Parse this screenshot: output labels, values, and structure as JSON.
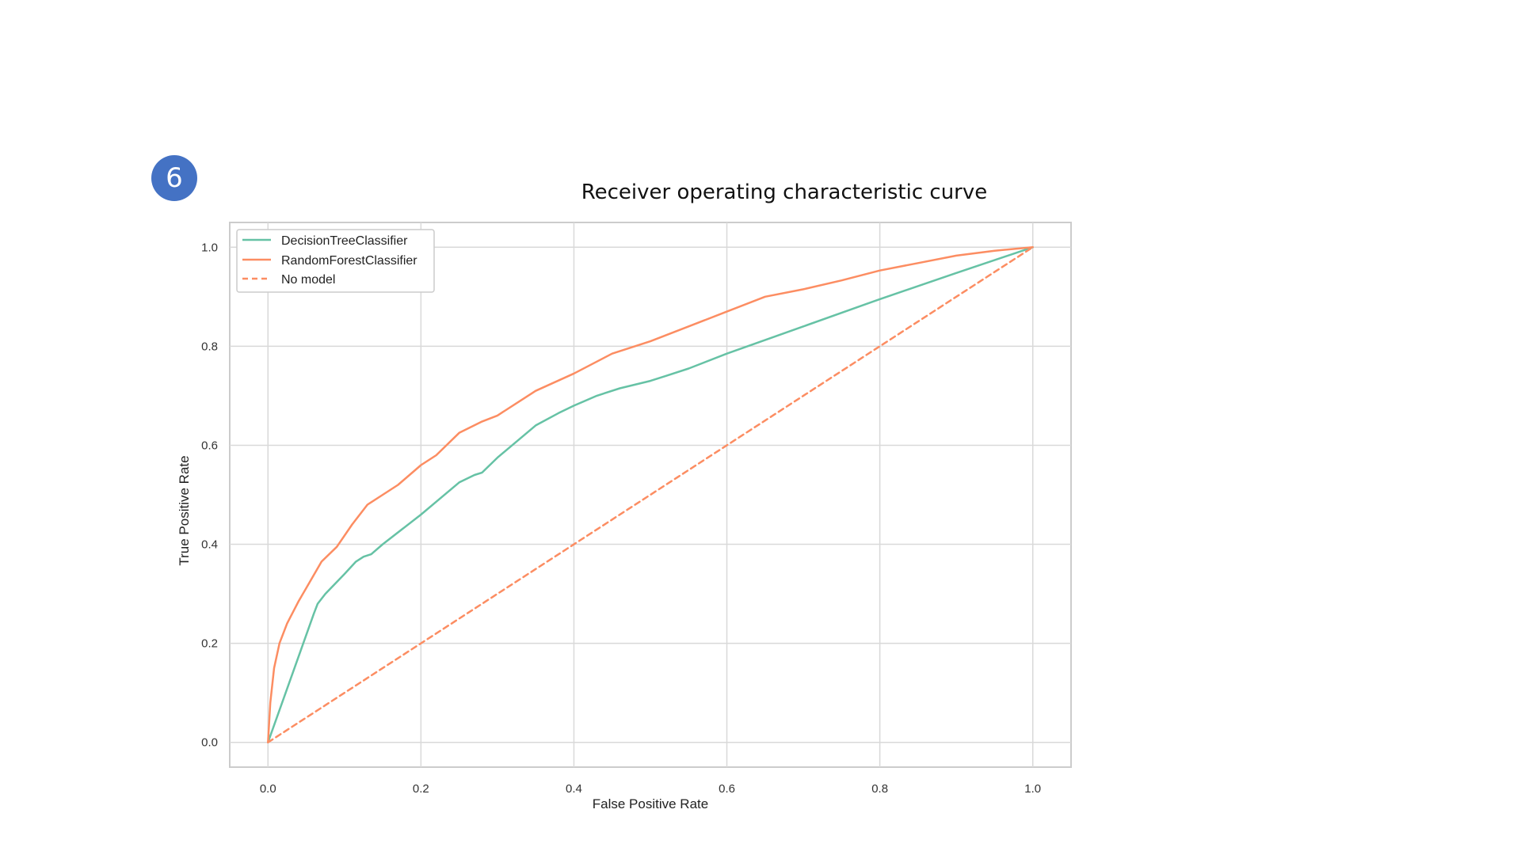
{
  "slide": {
    "badge": "6"
  },
  "chart_data": {
    "type": "line",
    "title": "Receiver operating characteristic curve",
    "xlabel": "False Positive Rate",
    "ylabel": "True Positive Rate",
    "xlim": [
      -0.05,
      1.05
    ],
    "ylim": [
      -0.05,
      1.05
    ],
    "xticks": [
      0.0,
      0.2,
      0.4,
      0.6,
      0.8,
      1.0
    ],
    "xtick_labels": [
      "0.0",
      "0.2",
      "0.4",
      "0.6",
      "0.8",
      "1.0"
    ],
    "yticks": [
      0.0,
      0.2,
      0.4,
      0.6,
      0.8,
      1.0
    ],
    "ytick_labels": [
      "0.0",
      "0.2",
      "0.4",
      "0.6",
      "0.8",
      "1.0"
    ],
    "grid": true,
    "legend_position": "upper-left",
    "series": [
      {
        "name": "DecisionTreeClassifier",
        "color": "#66c2a5",
        "dash": false,
        "x": [
          0.0,
          0.06,
          0.065,
          0.075,
          0.1,
          0.115,
          0.125,
          0.135,
          0.15,
          0.2,
          0.25,
          0.27,
          0.28,
          0.3,
          0.35,
          0.38,
          0.4,
          0.43,
          0.46,
          0.5,
          0.52,
          0.55,
          0.6,
          0.7,
          0.8,
          0.9,
          1.0
        ],
        "y": [
          0.0,
          0.26,
          0.28,
          0.3,
          0.34,
          0.365,
          0.375,
          0.38,
          0.4,
          0.46,
          0.525,
          0.54,
          0.545,
          0.575,
          0.64,
          0.665,
          0.68,
          0.7,
          0.715,
          0.73,
          0.74,
          0.755,
          0.785,
          0.84,
          0.895,
          0.948,
          1.0
        ]
      },
      {
        "name": "RandomForestClassifier",
        "color": "#fc8d62",
        "dash": false,
        "x": [
          0.0,
          0.003,
          0.008,
          0.015,
          0.025,
          0.04,
          0.055,
          0.07,
          0.09,
          0.11,
          0.13,
          0.15,
          0.17,
          0.2,
          0.22,
          0.25,
          0.28,
          0.3,
          0.35,
          0.4,
          0.45,
          0.5,
          0.55,
          0.6,
          0.65,
          0.7,
          0.75,
          0.8,
          0.85,
          0.9,
          0.95,
          1.0
        ],
        "y": [
          0.0,
          0.08,
          0.15,
          0.2,
          0.24,
          0.285,
          0.325,
          0.365,
          0.395,
          0.44,
          0.48,
          0.5,
          0.52,
          0.56,
          0.58,
          0.625,
          0.648,
          0.66,
          0.71,
          0.745,
          0.785,
          0.81,
          0.84,
          0.87,
          0.9,
          0.915,
          0.933,
          0.953,
          0.968,
          0.983,
          0.993,
          1.0
        ]
      },
      {
        "name": "No model",
        "color": "#fc8d62",
        "dash": true,
        "x": [
          0.0,
          1.0
        ],
        "y": [
          0.0,
          1.0
        ]
      }
    ]
  }
}
